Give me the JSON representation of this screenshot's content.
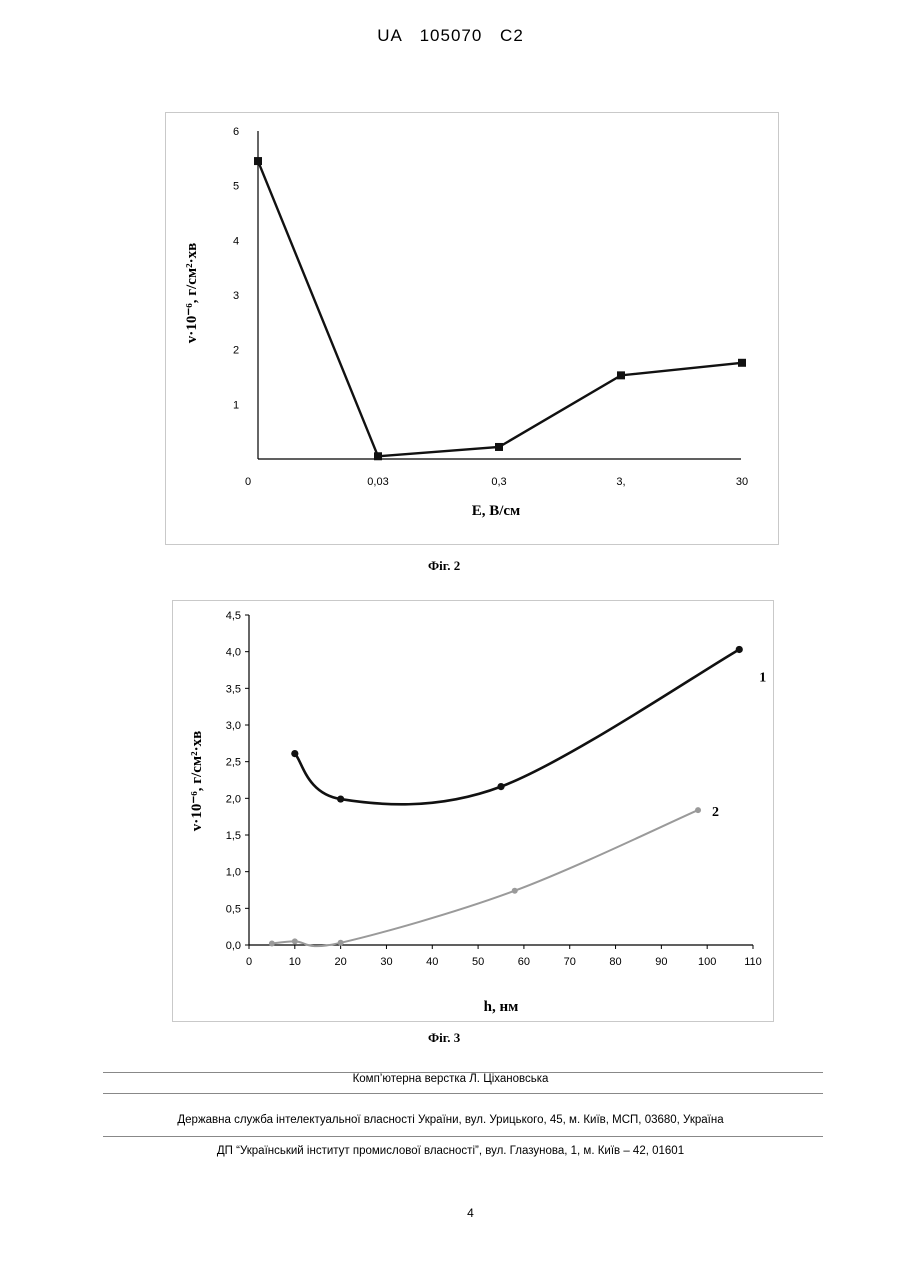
{
  "header": {
    "text": "UA   105070   C2"
  },
  "figures": {
    "fig2": {
      "caption": "Фіг. 2",
      "chart_data": {
        "type": "line",
        "x_axis_type": "categorical",
        "categories": [
          "0",
          "0,03",
          "0,3",
          "3",
          "30"
        ],
        "x_tick_labels": [
          "0",
          "0,03",
          "0,3",
          "3,",
          "30"
        ],
        "values": [
          5.45,
          0.05,
          0.22,
          1.53,
          1.76
        ],
        "y_tick_labels": [
          "1",
          "2",
          "3",
          "4",
          "5",
          "6"
        ],
        "ylim": [
          0,
          6
        ],
        "xlabel": "E,  В/см",
        "ylabel": "v·10⁻⁶, г/см²·хв",
        "marker": "square",
        "color": "#111111"
      }
    },
    "fig3": {
      "caption": "Фіг. 3",
      "chart_data": {
        "type": "line",
        "xlabel": "h, нм",
        "ylabel": "v·10⁻⁶, г/см²·хв",
        "xlim": [
          0,
          110
        ],
        "ylim": [
          0,
          4.5
        ],
        "x_tick_labels": [
          "0",
          "10",
          "20",
          "30",
          "40",
          "50",
          "60",
          "70",
          "80",
          "90",
          "100",
          "110"
        ],
        "y_tick_labels": [
          "0,0",
          "0,5",
          "1,0",
          "1,5",
          "2,0",
          "2,5",
          "3,0",
          "3,5",
          "4,0",
          "4,5"
        ],
        "series": [
          {
            "name": "1",
            "color": "#111111",
            "marker": "circle",
            "x": [
              10,
              20,
              55,
              107
            ],
            "y": [
              2.61,
              1.99,
              2.16,
              4.03
            ]
          },
          {
            "name": "2",
            "color": "#9a9a9a",
            "marker": "circle",
            "x": [
              5,
              10,
              20,
              58,
              98
            ],
            "y": [
              0.02,
              0.05,
              0.03,
              0.74,
              1.84
            ]
          }
        ]
      }
    }
  },
  "footer": {
    "line1": "Комп’ютерна верстка Л. Ціхановська",
    "line2": "Державна служба інтелектуальної власності України, вул. Урицького, 45, м. Київ, МСП, 03680, Україна",
    "line3": "ДП “Український інститут промислової власності”, вул. Глазунова, 1, м. Київ – 42, 01601"
  },
  "page_number": "4"
}
